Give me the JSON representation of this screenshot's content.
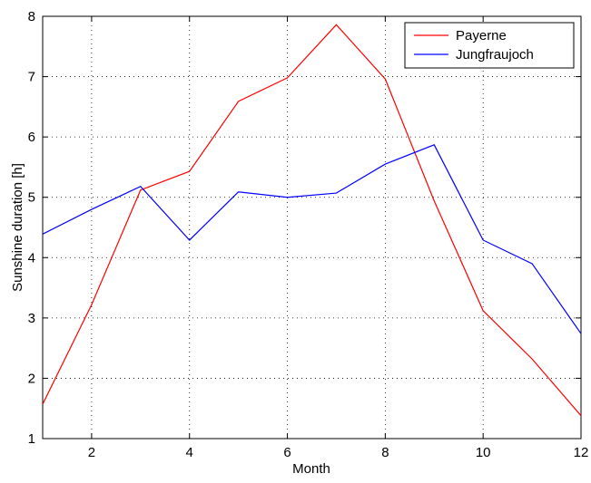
{
  "chart_data": {
    "type": "line",
    "x_label": "Month",
    "y_label": "Sunshine duration [h]",
    "x": [
      1,
      2,
      3,
      4,
      5,
      6,
      7,
      8,
      9,
      10,
      11,
      12
    ],
    "series": [
      {
        "name": "Payerne",
        "color": "#ff0000",
        "values": [
          1.57,
          3.22,
          5.12,
          5.43,
          6.59,
          6.98,
          7.86,
          6.96,
          4.94,
          3.12,
          2.32,
          1.38
        ]
      },
      {
        "name": "Jungfraujoch",
        "color": "#0000ff",
        "values": [
          4.39,
          4.8,
          5.18,
          4.29,
          5.09,
          5.0,
          5.07,
          5.55,
          5.87,
          4.29,
          3.9,
          2.74
        ]
      }
    ],
    "xlim": [
      1,
      12
    ],
    "xticks": [
      2,
      4,
      6,
      8,
      10,
      12
    ],
    "ylim": [
      1,
      8
    ],
    "yticks": [
      1,
      2,
      3,
      4,
      5,
      6,
      7,
      8
    ],
    "grid": true,
    "legend": "top-right"
  }
}
